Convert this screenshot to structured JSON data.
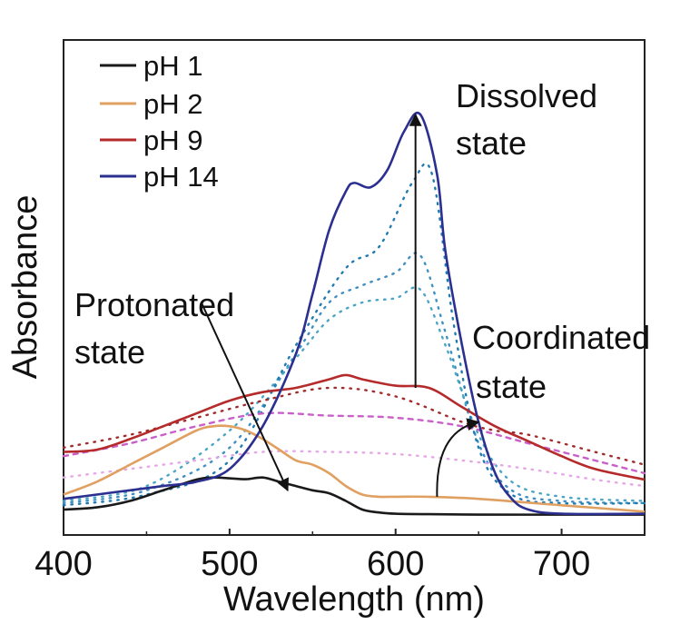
{
  "chart_data": {
    "type": "line",
    "title": "",
    "xlabel": "Wavelength (nm)",
    "ylabel": "Absorbance",
    "xlim": [
      400,
      750
    ],
    "ylim": [
      0,
      1.0
    ],
    "xticks": [
      "400",
      "500",
      "600",
      "700"
    ],
    "xtick_values": [
      400,
      500,
      600,
      700
    ],
    "yticks_shown": false,
    "grid": false,
    "legend_position": "top-left",
    "series": [
      {
        "name": "pH 1",
        "color": "#1a1a1a",
        "style": "solid",
        "x": [
          400,
          420,
          440,
          460,
          480,
          490,
          500,
          510,
          520,
          530,
          540,
          550,
          560,
          570,
          580,
          590,
          600,
          620,
          650,
          700,
          750
        ],
        "y": [
          0.015,
          0.02,
          0.035,
          0.06,
          0.085,
          0.09,
          0.088,
          0.086,
          0.09,
          0.08,
          0.07,
          0.06,
          0.053,
          0.035,
          0.015,
          0.008,
          0.005,
          0.004,
          0.003,
          0.003,
          0.003
        ]
      },
      {
        "name": "pH 2",
        "color": "#e0a062",
        "style": "solid",
        "x": [
          400,
          420,
          440,
          460,
          480,
          490,
          500,
          510,
          520,
          530,
          540,
          550,
          560,
          570,
          580,
          590,
          600,
          620,
          650,
          700,
          750
        ],
        "y": [
          0.05,
          0.08,
          0.12,
          0.16,
          0.2,
          0.21,
          0.21,
          0.2,
          0.18,
          0.155,
          0.13,
          0.12,
          0.1,
          0.07,
          0.05,
          0.045,
          0.045,
          0.045,
          0.04,
          0.025,
          0.01
        ]
      },
      {
        "name": "pH 9",
        "color": "#b52a2a",
        "style": "solid",
        "x": [
          400,
          420,
          440,
          460,
          480,
          500,
          520,
          540,
          560,
          570,
          580,
          600,
          620,
          640,
          660,
          680,
          700,
          720,
          750
        ],
        "y": [
          0.15,
          0.155,
          0.18,
          0.21,
          0.24,
          0.27,
          0.29,
          0.3,
          0.32,
          0.33,
          0.32,
          0.305,
          0.3,
          0.255,
          0.21,
          0.175,
          0.14,
          0.11,
          0.085
        ]
      },
      {
        "name": "pH 14",
        "color": "#2b2f8f",
        "style": "solid",
        "x": [
          400,
          420,
          440,
          460,
          480,
          500,
          520,
          540,
          550,
          560,
          570,
          575,
          585,
          595,
          605,
          615,
          625,
          630,
          640,
          650,
          660,
          670,
          680,
          700,
          750
        ],
        "y": [
          0.04,
          0.05,
          0.06,
          0.07,
          0.08,
          0.11,
          0.21,
          0.38,
          0.52,
          0.67,
          0.76,
          0.78,
          0.77,
          0.81,
          0.9,
          0.94,
          0.8,
          0.62,
          0.4,
          0.22,
          0.1,
          0.04,
          0.015,
          0.005,
          0.005
        ]
      }
    ],
    "intermediate_series": [
      {
        "color": "#3f8fc2",
        "style": "dotted",
        "x": [
          400,
          450,
          500,
          540,
          560,
          580,
          600,
          615,
          630,
          650,
          670,
          700,
          750
        ],
        "y": [
          0.03,
          0.06,
          0.16,
          0.38,
          0.5,
          0.54,
          0.57,
          0.61,
          0.43,
          0.17,
          0.06,
          0.035,
          0.03
        ]
      },
      {
        "color": "#4aa6c4",
        "style": "dotted",
        "x": [
          400,
          450,
          500,
          540,
          560,
          580,
          600,
          615,
          630,
          650,
          670,
          700,
          750
        ],
        "y": [
          0.035,
          0.07,
          0.2,
          0.37,
          0.46,
          0.5,
          0.51,
          0.53,
          0.4,
          0.19,
          0.08,
          0.045,
          0.035
        ]
      },
      {
        "color": "#1f7bb0",
        "style": "dotted",
        "x": [
          400,
          450,
          500,
          540,
          570,
          590,
          610,
          622,
          635,
          650,
          670,
          700,
          750
        ],
        "y": [
          0.025,
          0.05,
          0.13,
          0.4,
          0.58,
          0.63,
          0.78,
          0.8,
          0.45,
          0.16,
          0.05,
          0.03,
          0.03
        ]
      },
      {
        "color": "#c95fc9",
        "style": "dashed",
        "x": [
          400,
          440,
          480,
          520,
          560,
          600,
          640,
          680,
          720,
          750
        ],
        "y": [
          0.14,
          0.17,
          0.21,
          0.24,
          0.235,
          0.23,
          0.21,
          0.17,
          0.13,
          0.1
        ]
      },
      {
        "color": "#e6a7e6",
        "style": "dotted",
        "x": [
          400,
          440,
          480,
          520,
          560,
          600,
          640,
          680,
          720,
          750
        ],
        "y": [
          0.09,
          0.11,
          0.13,
          0.15,
          0.15,
          0.145,
          0.13,
          0.11,
          0.085,
          0.07
        ]
      },
      {
        "color": "#a12c2c",
        "style": "dotted",
        "x": [
          400,
          440,
          480,
          520,
          560,
          600,
          640,
          660,
          680,
          720,
          750
        ],
        "y": [
          0.16,
          0.19,
          0.23,
          0.27,
          0.3,
          0.28,
          0.22,
          0.2,
          0.19,
          0.15,
          0.12
        ]
      }
    ],
    "annotations": [
      {
        "lines": [
          "Dissolved",
          "state"
        ]
      },
      {
        "lines": [
          "Protonated",
          "state"
        ]
      },
      {
        "lines": [
          "Coordinated",
          "state"
        ]
      }
    ],
    "arrows": [
      {
        "from": [
          612,
          0.3
        ],
        "to": [
          612,
          0.94
        ]
      },
      {
        "from": [
          483,
          0.5
        ],
        "to": [
          535,
          0.06
        ]
      },
      {
        "from": [
          625,
          0.045
        ],
        "to": [
          650,
          0.22
        ]
      }
    ]
  }
}
